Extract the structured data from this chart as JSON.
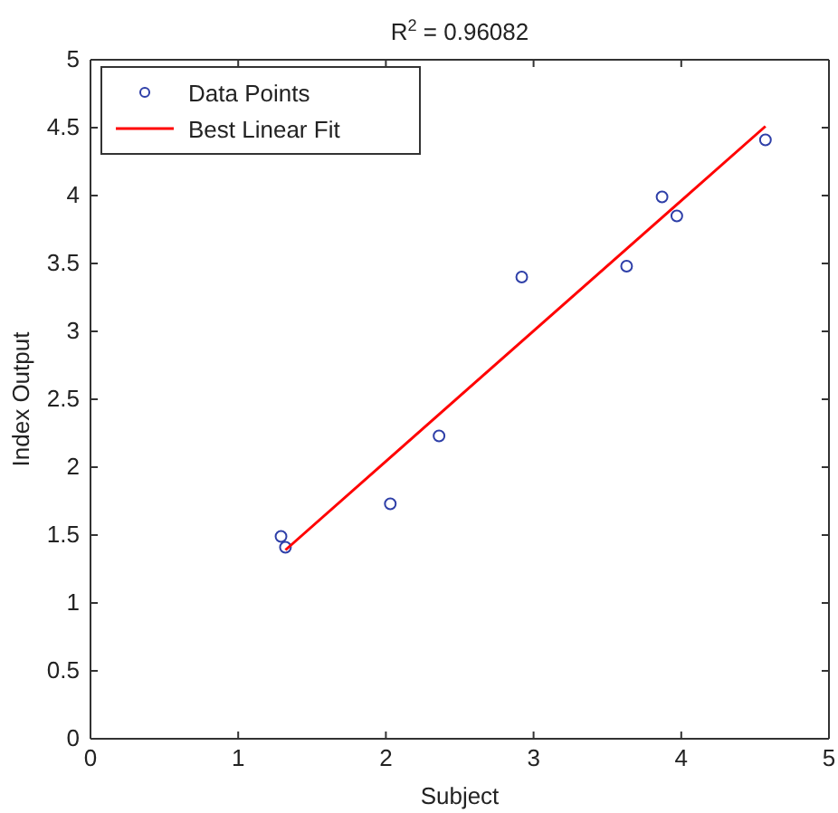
{
  "chart_data": {
    "type": "scatter",
    "title": "R$^{2}$ = 0.96082",
    "xlabel": "Subject",
    "ylabel": "Index Output",
    "xlim": [
      0,
      5
    ],
    "ylim": [
      0,
      5
    ],
    "xticks": [
      0,
      1,
      2,
      3,
      4,
      5
    ],
    "yticks": [
      0,
      0.5,
      1,
      1.5,
      2,
      2.5,
      3,
      3.5,
      4,
      4.5,
      5
    ],
    "legend": "top left",
    "grid": false,
    "series": [
      {
        "name": "Data Points",
        "color": "#2e3fa8",
        "marker": "circle",
        "x": [
          1.29,
          1.32,
          2.03,
          2.36,
          2.92,
          3.63,
          3.87,
          3.97,
          4.57
        ],
        "values": [
          1.49,
          1.41,
          1.73,
          2.23,
          3.4,
          3.48,
          3.99,
          3.85,
          4.41
        ]
      },
      {
        "name": "Best Linear Fit",
        "type": "line",
        "color": "#ff0000",
        "line_style": "solid",
        "x": [
          1.32,
          4.57
        ],
        "values": [
          1.39,
          4.51
        ]
      }
    ]
  }
}
